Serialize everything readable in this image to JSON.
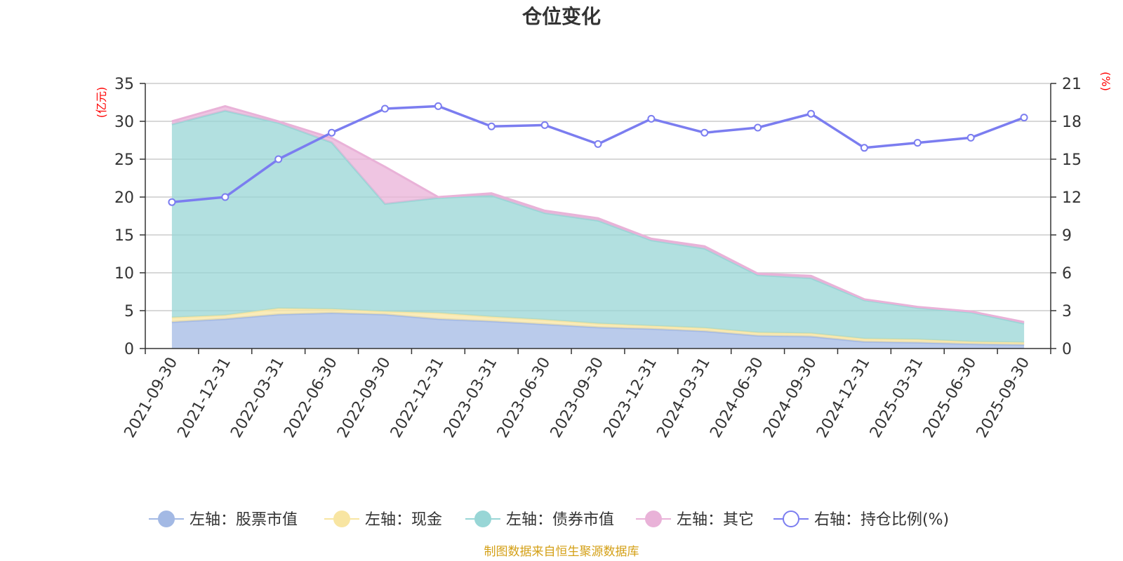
{
  "title": "仓位变化",
  "source_note": "制图数据来自恒生聚源数据库",
  "chart_data": {
    "type": "area",
    "categories": [
      "2021-09-30",
      "2021-12-31",
      "2022-03-31",
      "2022-06-30",
      "2022-09-30",
      "2022-12-31",
      "2023-03-31",
      "2023-06-30",
      "2023-09-30",
      "2023-12-31",
      "2024-03-31",
      "2024-06-30",
      "2024-09-30",
      "2024-12-31",
      "2025-03-31",
      "2025-06-30",
      "2025-09-30"
    ],
    "left_axis": {
      "unit": "(亿元)",
      "ylim": [
        0,
        35
      ],
      "ticks": [
        0,
        5,
        10,
        15,
        20,
        25,
        30,
        35
      ]
    },
    "right_axis": {
      "unit": "(%)",
      "ylim": [
        0,
        21
      ],
      "ticks": [
        0,
        3,
        6,
        9,
        12,
        15,
        18,
        21
      ]
    },
    "grid": true,
    "legend_position": "bottom",
    "series": [
      {
        "name": "左轴：股票市值",
        "axis": "left",
        "stack": "total",
        "color": "#a3b9e4",
        "values": [
          3.5,
          3.9,
          4.5,
          4.7,
          4.5,
          3.9,
          3.6,
          3.2,
          2.8,
          2.6,
          2.3,
          1.7,
          1.6,
          0.9,
          0.8,
          0.6,
          0.5
        ]
      },
      {
        "name": "左轴：现金",
        "axis": "left",
        "stack": "total",
        "color": "#f8e5a2",
        "values": [
          0.6,
          0.5,
          0.8,
          0.5,
          0.4,
          0.8,
          0.6,
          0.6,
          0.5,
          0.4,
          0.4,
          0.4,
          0.4,
          0.4,
          0.4,
          0.3,
          0.3
        ]
      },
      {
        "name": "左轴：债券市值",
        "axis": "left",
        "stack": "total",
        "color": "#98d6d6",
        "values": [
          25.5,
          27.0,
          24.5,
          22.0,
          14.2,
          15.2,
          16.0,
          14.1,
          13.6,
          11.3,
          10.5,
          7.6,
          7.3,
          5.1,
          4.2,
          3.9,
          2.5
        ]
      },
      {
        "name": "左轴：其它",
        "axis": "left",
        "stack": "total",
        "color": "#e9b2d8",
        "values": [
          0.4,
          0.6,
          0.2,
          0.6,
          4.9,
          0.1,
          0.3,
          0.3,
          0.3,
          0.2,
          0.3,
          0.2,
          0.3,
          0.1,
          0.1,
          0.1,
          0.2
        ]
      },
      {
        "name": "右轴：持仓比例(%)",
        "axis": "right",
        "type": "line",
        "color": "#7b7df0",
        "values": [
          11.6,
          12.0,
          15.0,
          17.1,
          19.0,
          19.2,
          17.6,
          17.7,
          16.2,
          18.2,
          17.1,
          17.5,
          18.6,
          15.9,
          16.3,
          16.7,
          18.3
        ]
      }
    ]
  }
}
